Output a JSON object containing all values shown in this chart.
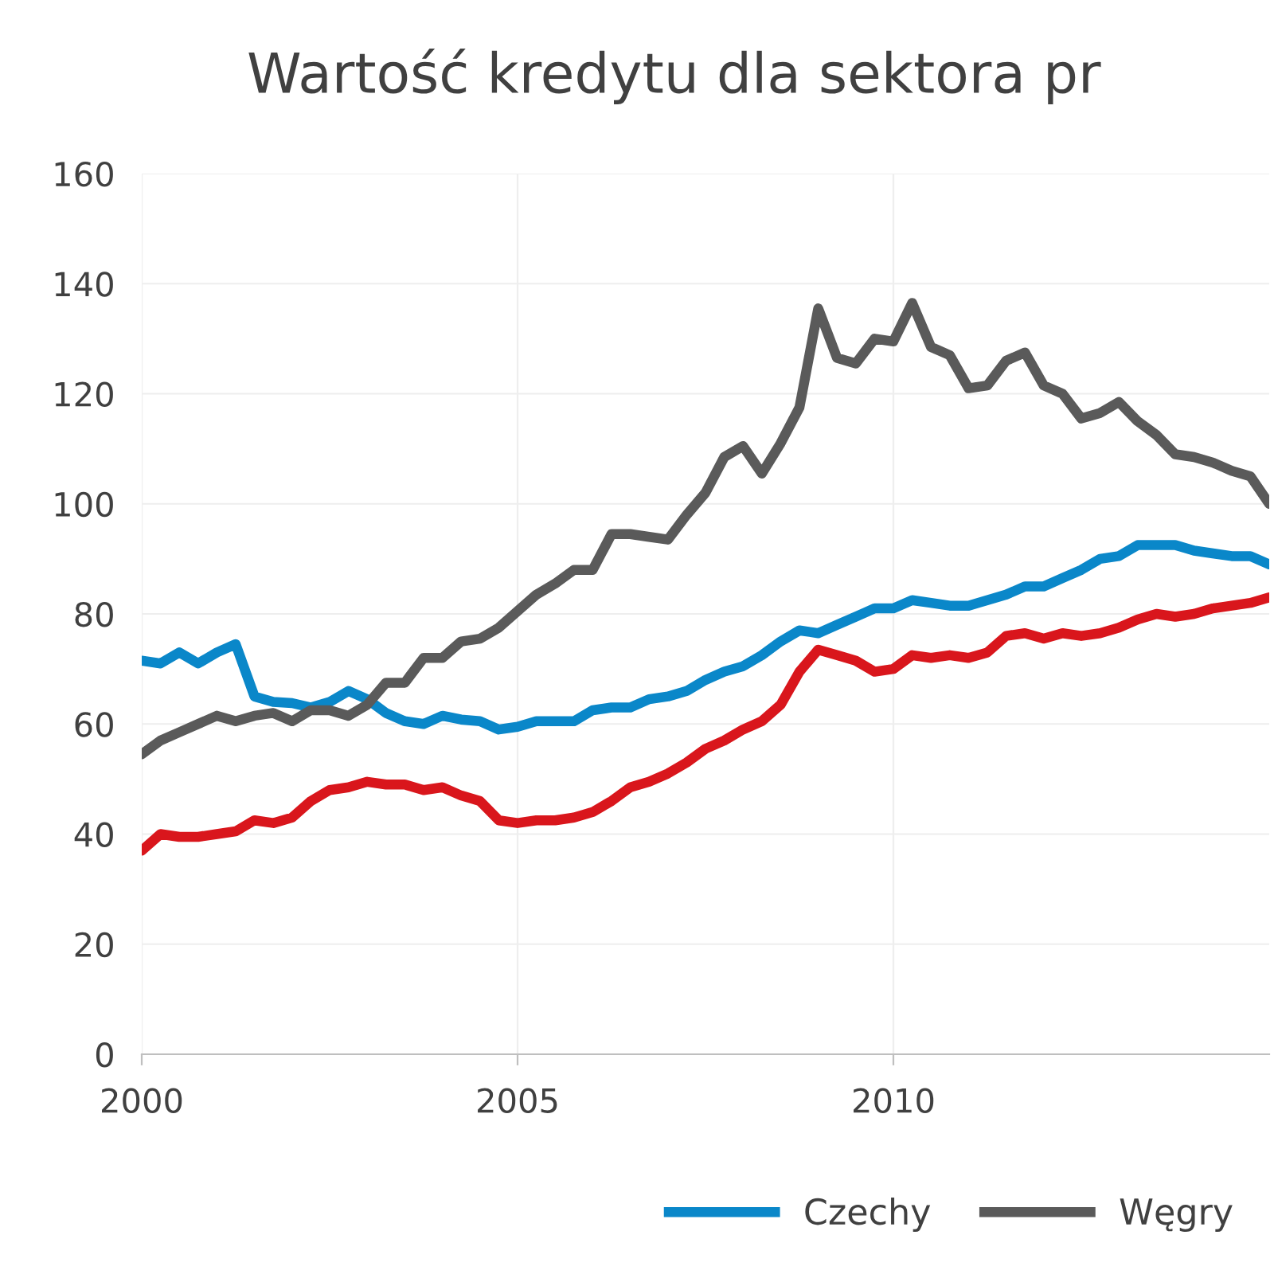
{
  "chart_data": {
    "type": "line",
    "title": "Wartość kredytu dla sektora pr",
    "x": [
      2000,
      2000.25,
      2000.5,
      2000.75,
      2001,
      2001.25,
      2001.5,
      2001.75,
      2002,
      2002.25,
      2002.5,
      2002.75,
      2003,
      2003.25,
      2003.5,
      2003.75,
      2004,
      2004.25,
      2004.5,
      2004.75,
      2005,
      2005.25,
      2005.5,
      2005.75,
      2006,
      2006.25,
      2006.5,
      2006.75,
      2007,
      2007.25,
      2007.5,
      2007.75,
      2008,
      2008.25,
      2008.5,
      2008.75,
      2009,
      2009.25,
      2009.5,
      2009.75,
      2010,
      2010.25,
      2010.5,
      2010.75,
      2011,
      2011.25,
      2011.5,
      2011.75,
      2012,
      2012.25,
      2012.5,
      2012.75,
      2013,
      2013.25,
      2013.5,
      2013.75,
      2014,
      2014.25,
      2014.5,
      2014.75,
      2015
    ],
    "series": [
      {
        "name": "Czechy",
        "color": "#0a87c9",
        "values": [
          71.5,
          71,
          73,
          71,
          73,
          74.5,
          65,
          64,
          63.8,
          63,
          64,
          66,
          64.5,
          62,
          60.5,
          60,
          61.5,
          60.8,
          60.5,
          59,
          59.5,
          60.5,
          60.5,
          60.5,
          62.5,
          63,
          63,
          64.5,
          65,
          66,
          68,
          69.5,
          70.5,
          72.5,
          75,
          77,
          76.5,
          78,
          79.5,
          81,
          81,
          82.5,
          82,
          81.5,
          81.5,
          82.5,
          83.5,
          85,
          85,
          86.5,
          88,
          90,
          90.5,
          92.5,
          92.5,
          92.5,
          91.5,
          91,
          90.5,
          90.5,
          89
        ]
      },
      {
        "name": "Węgry",
        "color": "#5a5a5a",
        "values": [
          54.5,
          57,
          58.5,
          60,
          61.5,
          60.5,
          61.5,
          62,
          60.5,
          62.5,
          62.5,
          61.5,
          63.5,
          67.5,
          67.5,
          72,
          72,
          75,
          75.5,
          77.5,
          80.5,
          83.5,
          85.5,
          88,
          88,
          94.5,
          94.5,
          94,
          93.5,
          98,
          102,
          108.5,
          110.5,
          105.5,
          111,
          117.5,
          135.5,
          126.5,
          125.5,
          130,
          129.5,
          136.5,
          128.5,
          127,
          121,
          121.5,
          126,
          127.5,
          121.5,
          120,
          115.5,
          116.5,
          118.5,
          115,
          112.5,
          109,
          108.5,
          107.5,
          106,
          105,
          100
        ]
      },
      {
        "color": "#d9161c",
        "values": [
          37,
          40,
          39.5,
          39.5,
          40,
          40.5,
          42.5,
          42,
          43,
          46,
          48,
          48.5,
          49.5,
          49,
          49,
          48,
          48.5,
          47,
          46,
          42.5,
          42,
          42.5,
          42.5,
          43,
          44,
          46,
          48.5,
          49.5,
          51,
          53,
          55.5,
          57,
          59,
          60.5,
          63.5,
          69.5,
          73.5,
          72.5,
          71.5,
          69.5,
          70,
          72.5,
          72,
          72.5,
          72,
          73,
          76,
          76.5,
          75.5,
          76.5,
          76,
          76.5,
          77.5,
          79,
          80,
          79.5,
          80,
          81,
          81.5,
          82,
          83
        ]
      }
    ],
    "xlim": [
      2000,
      2015
    ],
    "xticks": [
      2000,
      2005,
      2010
    ],
    "ylim": [
      0,
      160
    ],
    "yticks": [
      0,
      20,
      40,
      60,
      80,
      100,
      120,
      140,
      160
    ],
    "grid": true,
    "legend": "bottom",
    "line_style": "solid",
    "marker": "none"
  }
}
